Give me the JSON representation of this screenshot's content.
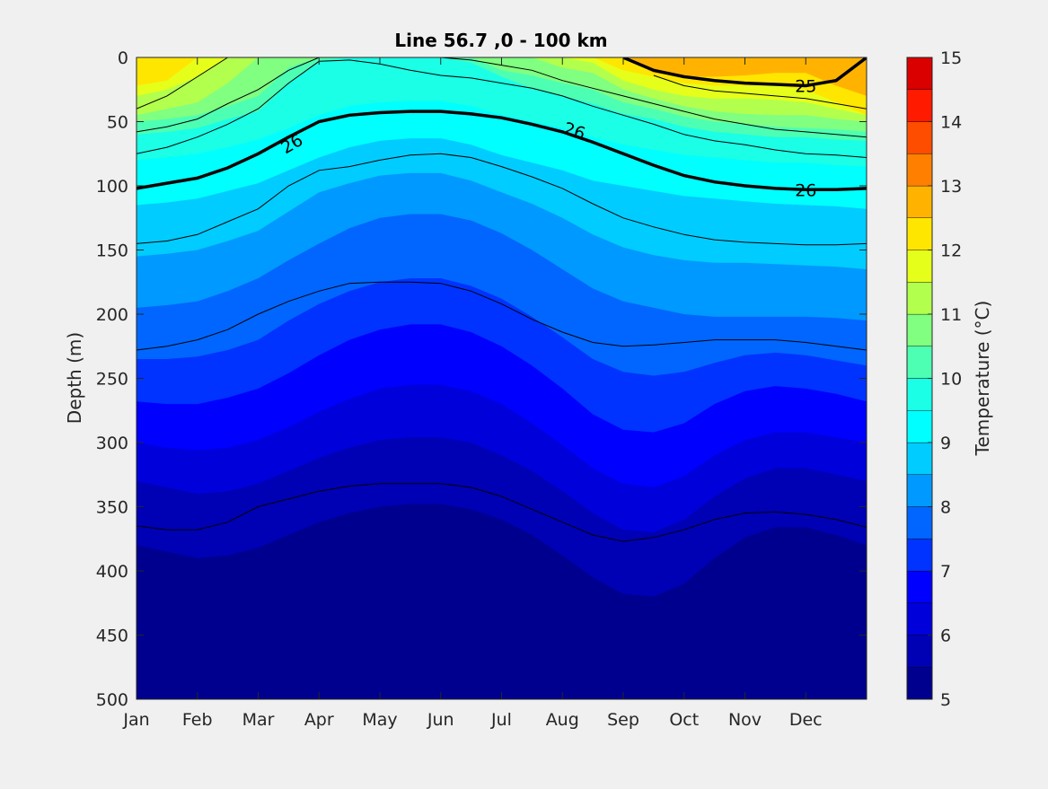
{
  "chart_data": {
    "type": "heatmap",
    "subtype": "filled-contour",
    "title": "Line 56.7 ,0 - 100 km",
    "xlabel": "",
    "ylabel": "Depth (m)",
    "colorbar_label": "Temperature (°C)",
    "x_ticks": [
      "Jan",
      "Feb",
      "Mar",
      "Apr",
      "May",
      "Jun",
      "Jul",
      "Aug",
      "Sep",
      "Oct",
      "Nov",
      "Dec"
    ],
    "x_range_months": [
      1,
      13
    ],
    "y_ticks": [
      0,
      50,
      100,
      150,
      200,
      250,
      300,
      350,
      400,
      450,
      500
    ],
    "y_range": [
      0,
      500
    ],
    "y_reversed": true,
    "colorbar_ticks": [
      5,
      6,
      7,
      8,
      9,
      10,
      11,
      12,
      13,
      14,
      15
    ],
    "color_range": [
      5,
      15
    ],
    "contour_interval": 0.5,
    "colormap": [
      "#00008f",
      "#0000b5",
      "#0000db",
      "#0000ff",
      "#0033ff",
      "#0066ff",
      "#0099ff",
      "#00ccff",
      "#00ffff",
      "#1affe6",
      "#4dffb3",
      "#80ff80",
      "#b3ff4d",
      "#e6ff1a",
      "#ffe600",
      "#ffb300",
      "#ff8000",
      "#ff4d00",
      "#ff1a00",
      "#db0000"
    ],
    "temperature_field": {
      "months": [
        1.0,
        1.5,
        2.0,
        2.5,
        3.0,
        3.5,
        4.0,
        4.5,
        5.0,
        5.5,
        6.0,
        6.5,
        7.0,
        7.5,
        8.0,
        8.5,
        9.0,
        9.5,
        10.0,
        10.5,
        11.0,
        11.5,
        12.0,
        12.5,
        13.0
      ],
      "isotherm_depths": [
        {
          "temp": 12.5,
          "depths": [
            0,
            0,
            0,
            0,
            0,
            0,
            0,
            0,
            0,
            0,
            0,
            0,
            0,
            0,
            0,
            0,
            0,
            12,
            15,
            15,
            14,
            12,
            12,
            22,
            30
          ]
        },
        {
          "temp": 12.0,
          "depths": [
            22,
            18,
            0,
            0,
            0,
            0,
            0,
            0,
            0,
            0,
            0,
            0,
            0,
            0,
            0,
            0,
            10,
            15,
            20,
            22,
            22,
            22,
            25,
            35,
            45
          ]
        },
        {
          "temp": 11.5,
          "depths": [
            30,
            25,
            15,
            0,
            0,
            0,
            0,
            0,
            0,
            0,
            0,
            0,
            0,
            0,
            0,
            4,
            18,
            25,
            30,
            32,
            32,
            33,
            35,
            40,
            45
          ]
        },
        {
          "temp": 11.0,
          "depths": [
            45,
            40,
            35,
            20,
            0,
            0,
            0,
            0,
            0,
            0,
            0,
            0,
            0,
            0,
            8,
            12,
            25,
            32,
            38,
            42,
            44,
            45,
            45,
            48,
            50
          ]
        },
        {
          "temp": 10.5,
          "depths": [
            50,
            48,
            45,
            38,
            30,
            8,
            0,
            0,
            0,
            0,
            0,
            0,
            10,
            14,
            20,
            25,
            35,
            40,
            46,
            50,
            52,
            54,
            55,
            56,
            58
          ]
        },
        {
          "temp": 10.0,
          "depths": [
            60,
            58,
            55,
            48,
            42,
            20,
            3,
            0,
            0,
            0,
            0,
            4,
            15,
            24,
            30,
            36,
            44,
            48,
            54,
            58,
            60,
            62,
            62,
            64,
            65
          ]
        },
        {
          "temp": 9.5,
          "depths": [
            80,
            78,
            75,
            70,
            64,
            55,
            45,
            38,
            35,
            34,
            34,
            38,
            45,
            50,
            55,
            62,
            68,
            72,
            76,
            78,
            80,
            82,
            82,
            84,
            85
          ]
        },
        {
          "temp": 9.0,
          "depths": [
            115,
            113,
            110,
            104,
            98,
            88,
            78,
            70,
            65,
            63,
            63,
            68,
            76,
            82,
            88,
            96,
            100,
            104,
            108,
            110,
            112,
            114,
            115,
            116,
            118
          ]
        },
        {
          "temp": 8.5,
          "depths": [
            155,
            153,
            150,
            143,
            135,
            120,
            105,
            98,
            92,
            90,
            90,
            96,
            105,
            114,
            125,
            138,
            148,
            154,
            158,
            160,
            160,
            161,
            162,
            163,
            165
          ]
        },
        {
          "temp": 8.0,
          "depths": [
            195,
            193,
            190,
            182,
            172,
            158,
            145,
            133,
            125,
            122,
            122,
            127,
            137,
            150,
            165,
            180,
            190,
            195,
            200,
            202,
            202,
            202,
            202,
            203,
            205
          ]
        },
        {
          "temp": 7.5,
          "depths": [
            235,
            235,
            233,
            228,
            220,
            205,
            192,
            182,
            175,
            172,
            172,
            178,
            188,
            202,
            218,
            235,
            245,
            248,
            245,
            238,
            232,
            230,
            232,
            236,
            240
          ]
        },
        {
          "temp": 7.0,
          "depths": [
            268,
            270,
            270,
            265,
            258,
            246,
            232,
            220,
            212,
            208,
            208,
            214,
            225,
            240,
            258,
            278,
            290,
            292,
            285,
            270,
            260,
            256,
            258,
            262,
            268
          ]
        },
        {
          "temp": 6.5,
          "depths": [
            300,
            304,
            306,
            304,
            298,
            288,
            276,
            266,
            258,
            255,
            255,
            260,
            270,
            285,
            302,
            320,
            332,
            335,
            326,
            310,
            298,
            292,
            292,
            296,
            300
          ]
        },
        {
          "temp": 6.0,
          "depths": [
            330,
            335,
            340,
            338,
            332,
            322,
            312,
            304,
            298,
            296,
            296,
            300,
            310,
            322,
            338,
            355,
            368,
            370,
            360,
            342,
            328,
            320,
            320,
            325,
            330
          ]
        },
        {
          "temp": 5.5,
          "depths": [
            380,
            385,
            390,
            388,
            382,
            372,
            362,
            355,
            350,
            348,
            348,
            352,
            360,
            372,
            388,
            405,
            418,
            420,
            410,
            390,
            374,
            366,
            366,
            372,
            380
          ]
        }
      ]
    },
    "contour_lines": {
      "months": [
        1.0,
        1.5,
        2.0,
        2.5,
        3.0,
        3.5,
        4.0,
        4.5,
        5.0,
        5.5,
        6.0,
        6.5,
        7.0,
        7.5,
        8.0,
        8.5,
        9.0,
        9.5,
        10.0,
        10.5,
        11.0,
        11.5,
        12.0,
        12.5,
        13.0
      ],
      "lines": [
        {
          "label": "26",
          "bold": true,
          "depths": [
            102,
            98,
            94,
            86,
            75,
            62,
            50,
            45,
            43,
            42,
            42,
            44,
            47,
            52,
            58,
            66,
            75,
            84,
            92,
            97,
            100,
            102,
            103,
            103,
            102
          ]
        },
        {
          "label": "25",
          "bold": true,
          "depths": [
            null,
            null,
            null,
            null,
            null,
            null,
            null,
            null,
            null,
            null,
            null,
            null,
            null,
            null,
            null,
            null,
            0,
            10,
            15,
            18,
            20,
            21,
            22,
            18,
            0
          ]
        },
        {
          "label": "",
          "bold": false,
          "depths": [
            75,
            70,
            62,
            52,
            40,
            20,
            3,
            2,
            5,
            10,
            14,
            16,
            20,
            24,
            30,
            38,
            45,
            52,
            60,
            65,
            68,
            72,
            75,
            76,
            78
          ]
        },
        {
          "label": "",
          "bold": false,
          "depths": [
            58,
            54,
            48,
            36,
            25,
            10,
            0,
            0,
            0,
            0,
            0,
            2,
            6,
            10,
            18,
            24,
            30,
            36,
            42,
            48,
            52,
            56,
            58,
            60,
            62
          ]
        },
        {
          "label": "",
          "bold": false,
          "depths": [
            40,
            30,
            15,
            0,
            null,
            null,
            null,
            null,
            null,
            null,
            null,
            null,
            null,
            null,
            null,
            null,
            null,
            14,
            22,
            26,
            28,
            30,
            32,
            36,
            40
          ]
        },
        {
          "label": "",
          "bold": false,
          "depths": [
            145,
            143,
            138,
            128,
            118,
            100,
            88,
            85,
            80,
            76,
            75,
            78,
            85,
            93,
            102,
            114,
            125,
            132,
            138,
            142,
            144,
            145,
            146,
            146,
            145
          ]
        },
        {
          "label": "",
          "bold": false,
          "depths": [
            228,
            225,
            220,
            212,
            200,
            190,
            182,
            176,
            175,
            175,
            176,
            182,
            192,
            204,
            214,
            222,
            225,
            224,
            222,
            220,
            220,
            220,
            222,
            225,
            228
          ]
        },
        {
          "label": "",
          "bold": false,
          "depths": [
            365,
            368,
            368,
            362,
            350,
            344,
            338,
            334,
            332,
            332,
            332,
            335,
            342,
            352,
            362,
            372,
            377,
            374,
            368,
            360,
            355,
            354,
            356,
            360,
            366
          ]
        }
      ],
      "label_positions": [
        {
          "text": "26",
          "month": 3.55,
          "depth": 67,
          "rotate": -30
        },
        {
          "text": "26",
          "month": 8.2,
          "depth": 57,
          "rotate": 18
        },
        {
          "text": "25",
          "month": 12.0,
          "depth": 22,
          "rotate": 0
        },
        {
          "text": "26",
          "month": 12.0,
          "depth": 103,
          "rotate": 0
        }
      ]
    }
  }
}
